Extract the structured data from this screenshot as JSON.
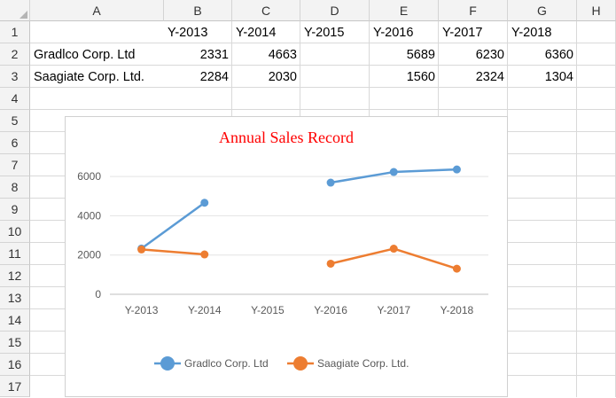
{
  "columns": [
    "A",
    "B",
    "C",
    "D",
    "E",
    "F",
    "G",
    "H"
  ],
  "rows": [
    "1",
    "2",
    "3",
    "4",
    "5",
    "6",
    "7",
    "8",
    "9",
    "10",
    "11",
    "12",
    "13",
    "14",
    "15",
    "16",
    "17"
  ],
  "table": {
    "headers": [
      "",
      "Y-2013",
      "Y-2014",
      "Y-2015",
      "Y-2016",
      "Y-2017",
      "Y-2018"
    ],
    "rows": [
      [
        "Gradlco Corp. Ltd",
        "2331",
        "4663",
        "",
        "5689",
        "6230",
        "6360"
      ],
      [
        "Saagiate Corp. Ltd.",
        "2284",
        "2030",
        "",
        "1560",
        "2324",
        "1304"
      ]
    ]
  },
  "chart_data": {
    "type": "line",
    "title": "Annual Sales Record",
    "title_color": "#ff0000",
    "categories": [
      "Y-2013",
      "Y-2014",
      "Y-2015",
      "Y-2016",
      "Y-2017",
      "Y-2018"
    ],
    "series": [
      {
        "name": "Gradlco Corp. Ltd",
        "color": "#5b9bd5",
        "values": [
          2331,
          4663,
          null,
          5689,
          6230,
          6360
        ]
      },
      {
        "name": "Saagiate Corp. Ltd.",
        "color": "#ed7d31",
        "values": [
          2284,
          2030,
          null,
          1560,
          2324,
          1304
        ]
      }
    ],
    "ylim": [
      0,
      7000
    ],
    "yticks": [
      0,
      2000,
      4000,
      6000
    ],
    "xlabel": "",
    "ylabel": "",
    "grid": true,
    "legend": "bottom"
  }
}
